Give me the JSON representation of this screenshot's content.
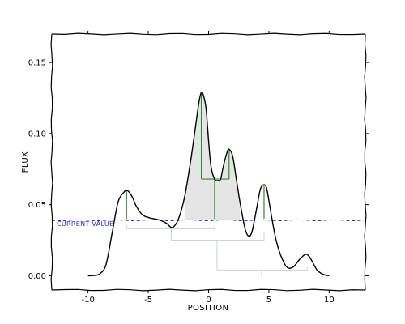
{
  "chart_data": {
    "type": "line",
    "title": "",
    "xlabel": "POSITION",
    "ylabel": "FLUX",
    "xlim": [
      -13,
      13
    ],
    "ylim": [
      -0.01,
      0.17
    ],
    "grid": false,
    "xticks": [
      -10,
      -5,
      0,
      5,
      10
    ],
    "xtick_labels": [
      "-10",
      "-5",
      "0",
      "5",
      "10"
    ],
    "yticks": [
      0.0,
      0.05,
      0.1,
      0.15
    ],
    "ytick_labels": [
      "0.00",
      "0.05",
      "0.10",
      "0.15"
    ],
    "series": [
      {
        "color": "#000000",
        "x": [
          -10,
          -9.5,
          -9,
          -8.5,
          -8,
          -7.5,
          -7,
          -6.8,
          -6.6,
          -6.3,
          -6,
          -5.5,
          -5,
          -4.5,
          -4,
          -3.5,
          -3,
          -2.5,
          -2,
          -1.5,
          -1,
          -0.8,
          -0.6,
          -0.4,
          -0.2,
          0,
          0.2,
          0.5,
          0.8,
          1,
          1.2,
          1.5,
          1.7,
          2,
          2.3,
          2.6,
          3,
          3.3,
          3.6,
          4,
          4.3,
          4.6,
          4.8,
          5,
          5.3,
          5.6,
          6,
          6.5,
          7,
          7.5,
          8,
          8.3,
          8.6,
          9,
          9.5,
          10
        ],
        "y": [
          0.0,
          0.0002,
          0.0015,
          0.008,
          0.03,
          0.052,
          0.059,
          0.06,
          0.059,
          0.055,
          0.049,
          0.043,
          0.041,
          0.04,
          0.039,
          0.037,
          0.034,
          0.04,
          0.055,
          0.08,
          0.11,
          0.122,
          0.129,
          0.126,
          0.117,
          0.095,
          0.077,
          0.068,
          0.067,
          0.068,
          0.076,
          0.086,
          0.089,
          0.084,
          0.068,
          0.052,
          0.034,
          0.028,
          0.031,
          0.048,
          0.061,
          0.064,
          0.062,
          0.053,
          0.038,
          0.025,
          0.014,
          0.006,
          0.006,
          0.011,
          0.015,
          0.014,
          0.01,
          0.004,
          0.001,
          0.0
        ]
      }
    ],
    "shaded_region": {
      "x_start": -2,
      "x_end": 2.6,
      "color": "#e5e5e5"
    },
    "peak_markers": [
      {
        "x": -6.8,
        "y_top": 0.06,
        "y_bottom": 0.04
      },
      {
        "x": -0.6,
        "y_top": 0.129,
        "y_bottom": 0.068
      },
      {
        "x": 0.5,
        "y_top": 0.068,
        "y_bottom": 0.04
      },
      {
        "x": 1.7,
        "y_top": 0.089,
        "y_bottom": 0.068
      },
      {
        "x": 4.6,
        "y_top": 0.064,
        "y_bottom": 0.04
      }
    ],
    "peak_marker_color": "#2e8b2e",
    "peak_connectors": [
      {
        "x_start": -0.6,
        "x_end": 1.7,
        "y": 0.068
      }
    ],
    "reference_line": {
      "y": 0.039,
      "label": "CURRENT VALUE",
      "color": "#2b2bd8"
    },
    "dendrogram": {
      "color": "#c8d3e0",
      "links": [
        {
          "x1": -6.8,
          "x2": 0.5,
          "y_top": 0.033,
          "y_bottom_left": 0.036,
          "y_bottom_right": 0.035
        },
        {
          "x1": -3.1,
          "x2": 4.6,
          "y_top": 0.025,
          "y_bottom_left": 0.033,
          "y_bottom_right": 0.031
        },
        {
          "x1": 0.7,
          "x2": 8.2,
          "y_top": 0.004,
          "y_bottom_left": 0.025,
          "y_bottom_right": 0.006
        }
      ],
      "stems": [
        {
          "x": 4.4,
          "y_top": 0.004,
          "y_bottom": -0.001
        }
      ]
    }
  }
}
